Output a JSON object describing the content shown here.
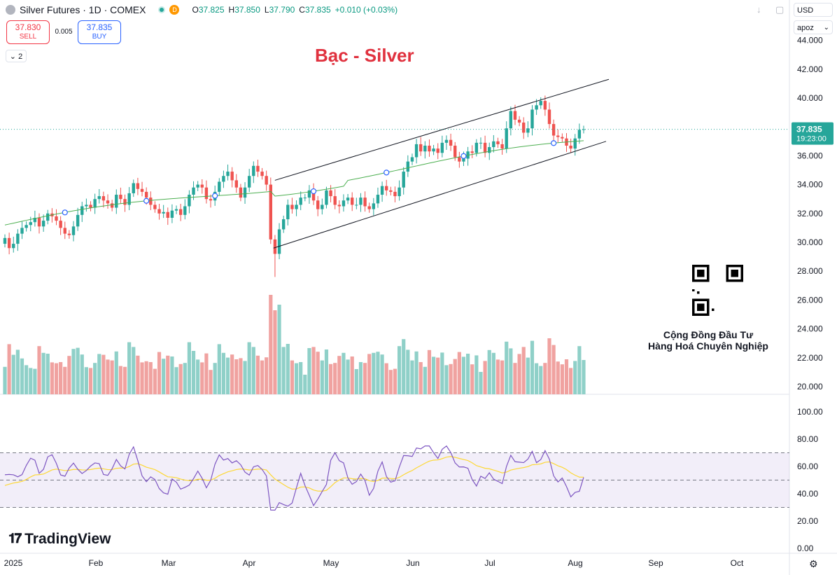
{
  "header": {
    "symbol": "Silver Futures · 1D · COMEX",
    "badge": "D",
    "open_label": "O",
    "open": "37.825",
    "high_label": "H",
    "high": "37.850",
    "low_label": "L",
    "low": "37.790",
    "close_label": "C",
    "close": "37.835",
    "change": "+0.010 (+0.03%)"
  },
  "trade": {
    "sell_price": "37.830",
    "sell_label": "SELL",
    "spread": "0.005",
    "buy_price": "37.835",
    "buy_label": "BUY"
  },
  "indicators_collapsed": "2",
  "currency": "USD",
  "scale_mode": "apoz",
  "title": "Bạc - Silver",
  "community": {
    "line1": "Cộng Đồng Đầu Tư",
    "line2": "Hàng Hoá Chuyên Nghiệp"
  },
  "brand": "TradingView",
  "colors": {
    "up": "#26a69a",
    "down": "#ef5350",
    "ma": "#4caf50",
    "rsi": "#7e57c2",
    "rsi_ma": "#fdd835",
    "title": "#e0313e"
  },
  "chart_data": {
    "type": "candlestick",
    "instrument": "Silver Futures",
    "timeframe": "1D",
    "exchange": "COMEX",
    "price_axis": {
      "ticks": [
        "44.000",
        "42.000",
        "40.000",
        "38.000",
        "36.000",
        "34.000",
        "32.000",
        "30.000",
        "28.000",
        "26.000",
        "24.000",
        "22.000",
        "20.000"
      ],
      "range": [
        19.5,
        44.5
      ]
    },
    "last_price_label": {
      "price": "37.835",
      "countdown": "19:23:00"
    },
    "x_axis": {
      "labels": [
        "2025",
        "Feb",
        "Mar",
        "Apr",
        "May",
        "Jun",
        "Jul",
        "Aug",
        "Sep",
        "Oct"
      ]
    },
    "closes": [
      30.3,
      29.6,
      29.9,
      30.6,
      31.0,
      31.2,
      31.4,
      31.7,
      31.1,
      31.5,
      32.0,
      31.8,
      31.5,
      31.0,
      30.6,
      30.5,
      31.1,
      31.9,
      32.5,
      32.6,
      32.4,
      33.0,
      33.2,
      32.9,
      32.7,
      32.4,
      33.3,
      33.0,
      32.6,
      33.4,
      34.1,
      33.7,
      33.5,
      33.1,
      32.6,
      32.3,
      32.0,
      32.1,
      31.7,
      32.2,
      32.3,
      31.9,
      32.5,
      33.3,
      33.8,
      34.0,
      33.8,
      33.0,
      32.9,
      33.5,
      34.2,
      34.6,
      34.9,
      34.3,
      33.8,
      33.1,
      33.8,
      34.6,
      35.3,
      34.9,
      34.6,
      34.0,
      30.2,
      29.2,
      30.9,
      31.6,
      32.6,
      32.3,
      32.6,
      33.1,
      33.1,
      33.6,
      32.9,
      32.3,
      32.6,
      33.6,
      33.2,
      32.6,
      32.5,
      32.9,
      33.1,
      32.6,
      32.6,
      33.1,
      32.5,
      32.3,
      32.7,
      33.3,
      33.9,
      33.6,
      33.5,
      33.2,
      33.8,
      34.9,
      35.6,
      35.9,
      36.8,
      36.3,
      36.7,
      36.3,
      36.5,
      36.2,
      36.9,
      37.1,
      36.7,
      35.9,
      35.6,
      35.8,
      36.3,
      36.2,
      36.9,
      36.9,
      36.2,
      36.6,
      37.0,
      36.8,
      36.5,
      37.9,
      39.1,
      38.5,
      38.3,
      37.6,
      37.9,
      39.2,
      39.5,
      39.8,
      39.2,
      38.2,
      37.4,
      37.3,
      37.2,
      36.7,
      36.5,
      37.2,
      37.8,
      37.835
    ],
    "moving_average": {
      "start": 31.2,
      "end": 36.9
    },
    "channel": {
      "upper": [
        [
          27.7,
          34.3
        ],
        [
          41.4,
          41.3
        ]
      ],
      "lower": [
        [
          27.4,
          29.6
        ],
        [
          40.8,
          37.0
        ]
      ]
    },
    "volume_note": "volume histogram shown without values",
    "rsi": {
      "ticks": [
        "100.00",
        "80.00",
        "60.00",
        "40.00",
        "20.00",
        "0.00"
      ],
      "bands": [
        70,
        50,
        30
      ],
      "last": 52,
      "last_ma": 58
    }
  }
}
